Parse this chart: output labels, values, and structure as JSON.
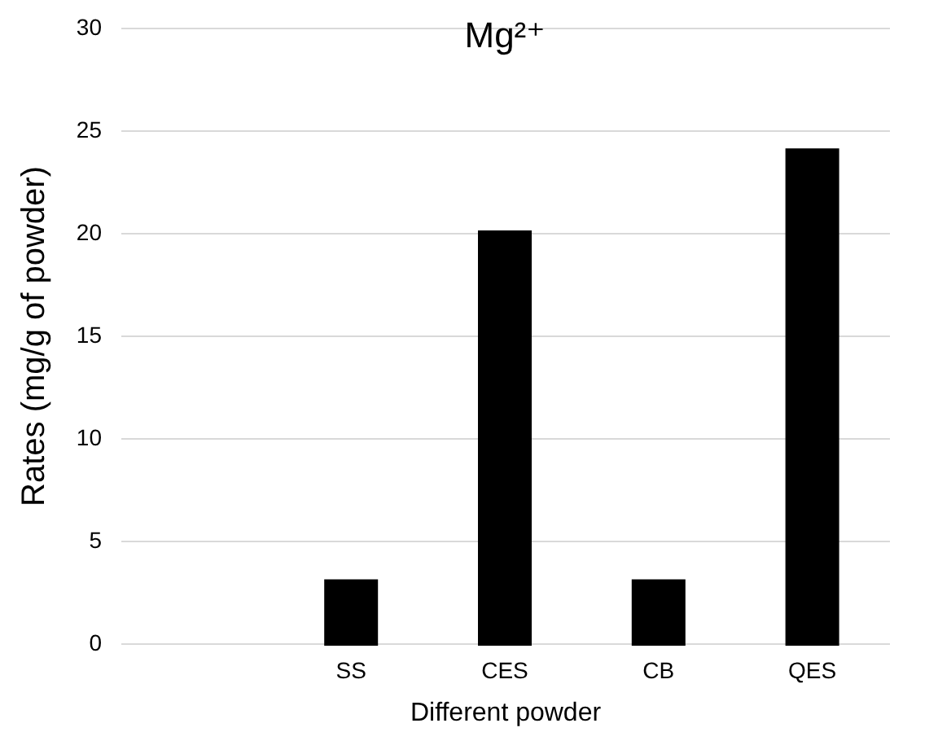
{
  "chart_data": {
    "type": "bar",
    "title": "Mg²⁺",
    "xlabel": "Different powder",
    "ylabel": "Rates (mg/g of powder)",
    "categories": [
      null,
      "SS",
      "CES",
      "CB",
      "QES"
    ],
    "values": [
      null,
      3,
      20,
      3,
      24
    ],
    "color": "#000000",
    "ylim": [
      0,
      30
    ],
    "yticks": [
      0,
      5,
      10,
      15,
      20,
      25,
      30
    ],
    "grid": "y"
  }
}
